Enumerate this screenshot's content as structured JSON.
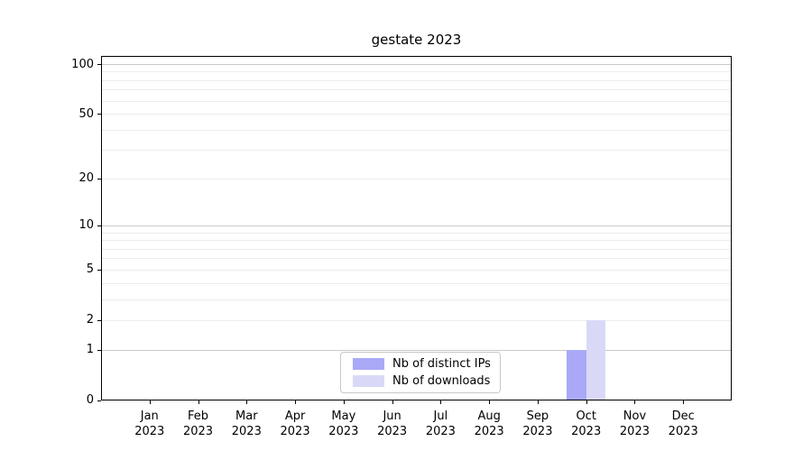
{
  "chart_data": {
    "type": "bar",
    "title": "gestate 2023",
    "categories": [
      "Jan",
      "Feb",
      "Mar",
      "Apr",
      "May",
      "Jun",
      "Jul",
      "Aug",
      "Sep",
      "Oct",
      "Nov",
      "Dec"
    ],
    "year_label": "2023",
    "series": [
      {
        "name": "Nb of distinct IPs",
        "color": "#a9a9f7",
        "values": [
          0,
          0,
          0,
          0,
          0,
          0,
          0,
          0,
          0,
          1,
          0,
          0
        ]
      },
      {
        "name": "Nb of downloads",
        "color": "#d9d9f7",
        "values": [
          0,
          0,
          0,
          0,
          0,
          0,
          0,
          0,
          0,
          2,
          0,
          0
        ]
      }
    ],
    "yscale": "symlog",
    "ylim": [
      0,
      112
    ],
    "yticks": [
      0,
      1,
      2,
      5,
      10,
      20,
      50,
      100
    ],
    "grid_major_values": [
      1,
      10,
      100
    ],
    "grid_minor_values": [
      2,
      3,
      4,
      5,
      6,
      7,
      8,
      9,
      20,
      30,
      40,
      50,
      60,
      70,
      80,
      90
    ],
    "legend_position": "lower center",
    "grid": true,
    "colors": {
      "grid_major": "#c9c9c9",
      "grid_minor": "#ececec",
      "axis": "#000000",
      "background": "#ffffff"
    }
  }
}
